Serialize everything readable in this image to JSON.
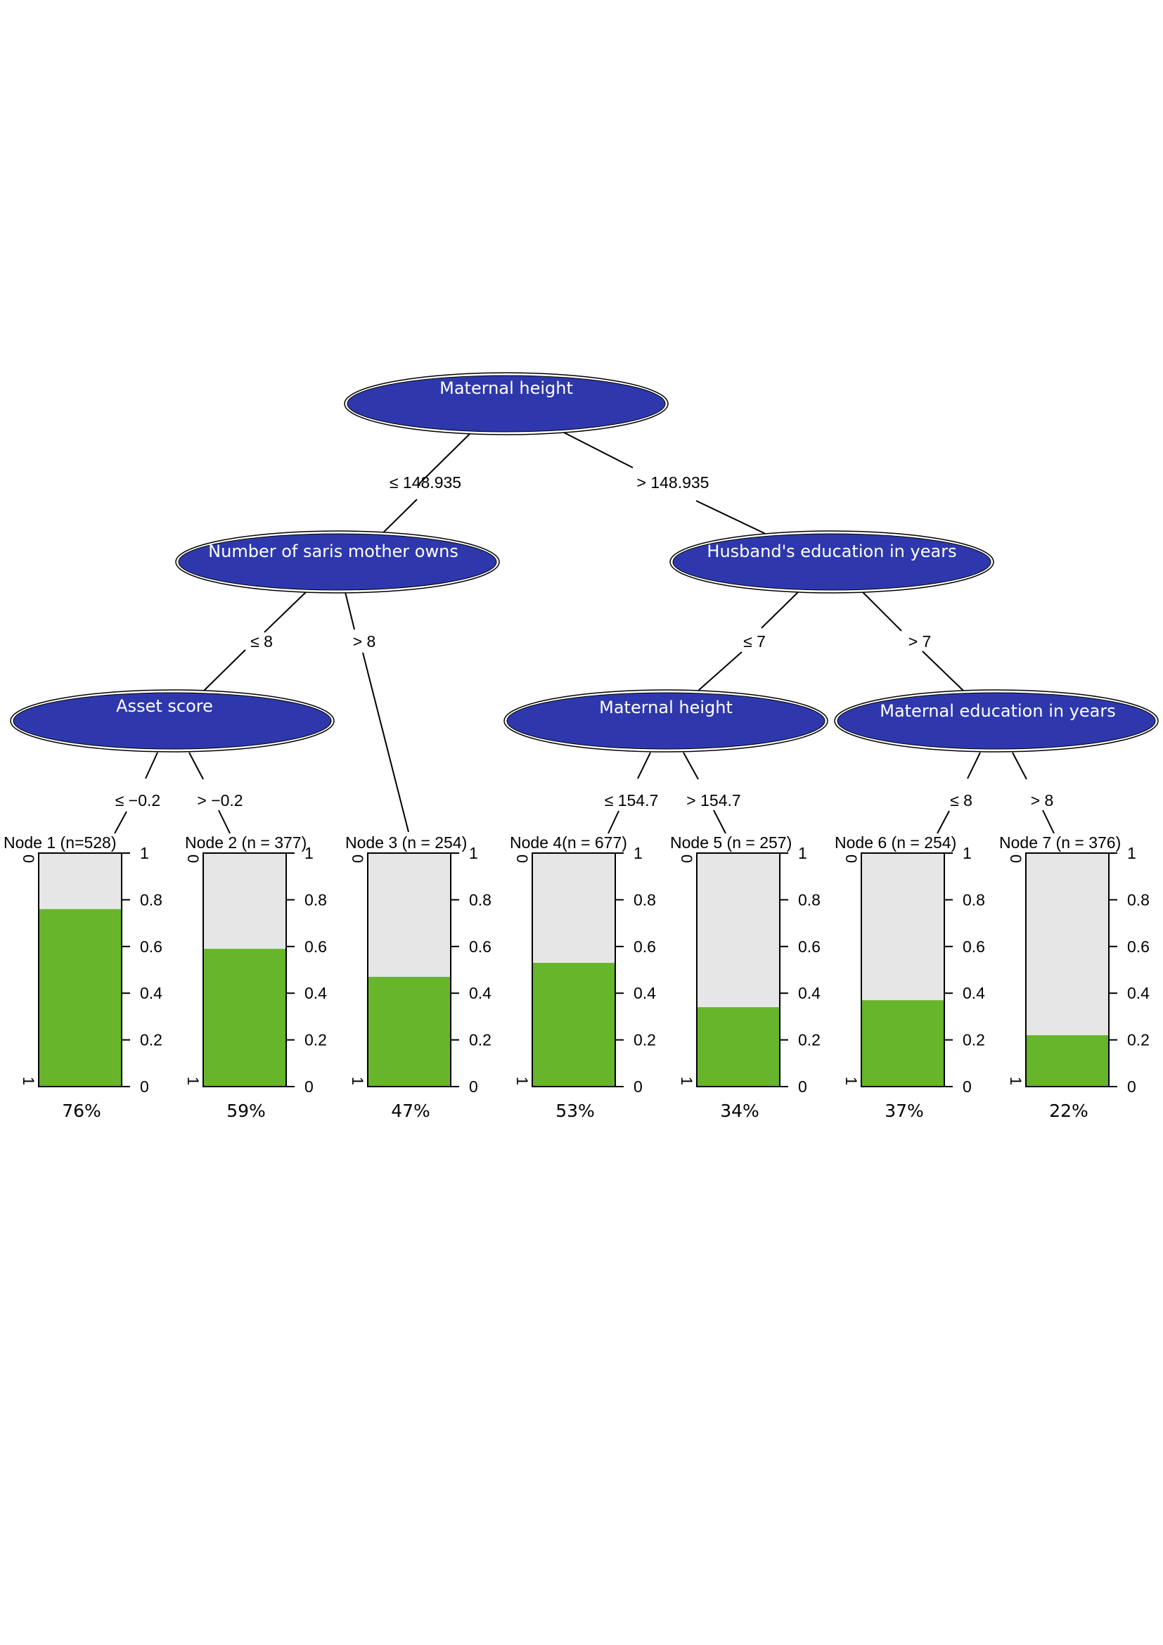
{
  "colors": {
    "inner_node_fill": "#2e38ac",
    "bar_fill": "#67b52b",
    "bar_bg": "#e6e6e6",
    "edge": "#000000"
  },
  "tree": {
    "root": {
      "label": "Maternal height",
      "left_edge": "≤ 148.935",
      "right_edge": "> 148.935"
    },
    "saris": {
      "label": "Number of saris mother owns",
      "left_edge": "≤ 8",
      "right_edge": "> 8"
    },
    "husband_edu": {
      "label": "Husband's education in years",
      "left_edge": "≤ 7",
      "right_edge": "> 7"
    },
    "asset": {
      "label": "Asset score",
      "left_edge": "≤ −0.2",
      "right_edge": "> −0.2"
    },
    "height2": {
      "label": "Maternal height",
      "left_edge": "≤ 154.7",
      "right_edge": "> 154.7"
    },
    "maternal_edu": {
      "label": "Maternal education in years",
      "left_edge": "≤ 8",
      "right_edge": "> 8"
    }
  },
  "axis": {
    "ticks": [
      "0",
      "0.2",
      "0.4",
      "0.6",
      "0.8",
      "1"
    ],
    "top_category": "0",
    "bottom_category": "1"
  },
  "chart_data": {
    "type": "bar",
    "title": "",
    "categories": [
      "Node 1",
      "Node 2",
      "Node 3",
      "Node 4",
      "Node 5",
      "Node 6",
      "Node 7"
    ],
    "values": [
      0.76,
      0.59,
      0.47,
      0.53,
      0.34,
      0.37,
      0.22
    ],
    "ylim": [
      0,
      1
    ],
    "leaves": [
      {
        "title": "Node 1 (n=528)",
        "value": 0.76,
        "percent": "76%"
      },
      {
        "title": "Node 2 (n = 377)",
        "value": 0.59,
        "percent": "59%"
      },
      {
        "title": "Node 3 (n = 254)",
        "value": 0.47,
        "percent": "47%"
      },
      {
        "title": "Node 4(n = 677)",
        "value": 0.53,
        "percent": "53%"
      },
      {
        "title": "Node 5 (n = 257)",
        "value": 0.34,
        "percent": "34%"
      },
      {
        "title": "Node 6 (n = 254)",
        "value": 0.37,
        "percent": "37%"
      },
      {
        "title": "Node 7 (n = 376)",
        "value": 0.22,
        "percent": "22%"
      }
    ]
  }
}
